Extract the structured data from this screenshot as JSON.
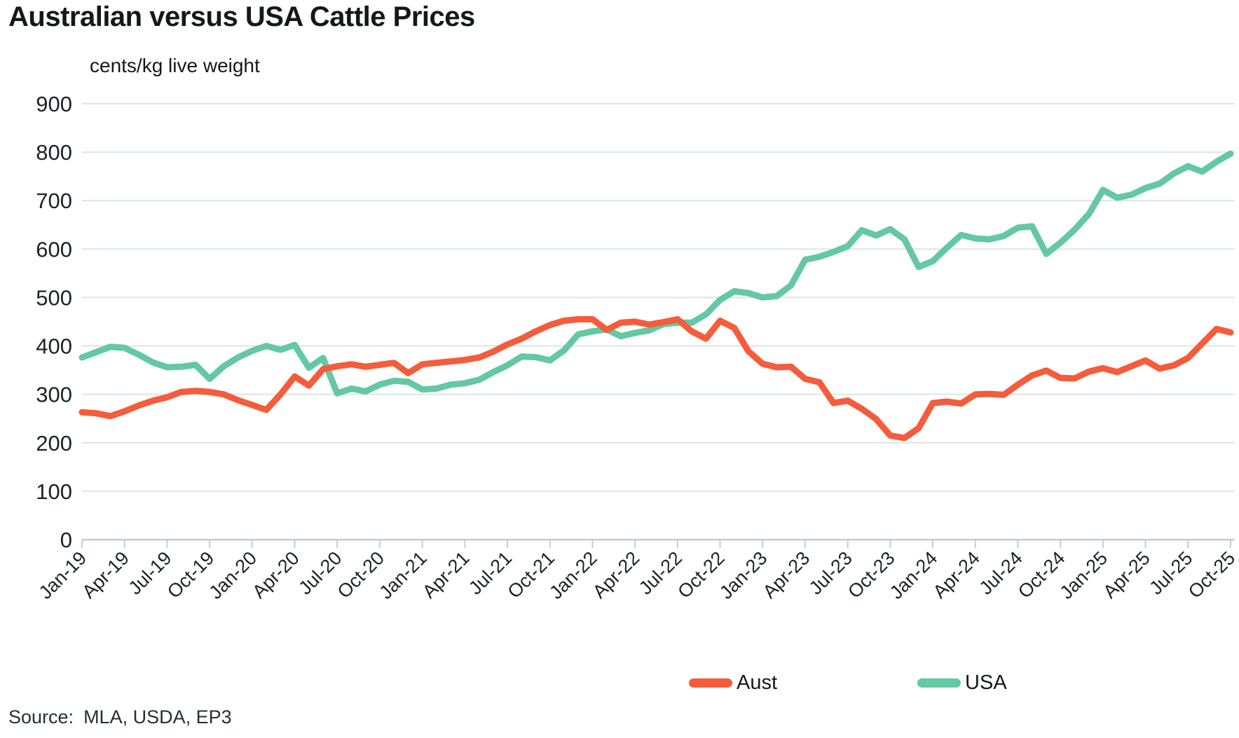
{
  "title": "Australian versus USA Cattle Prices",
  "source": {
    "label": "Source:",
    "text": "MLA, USDA, EP3"
  },
  "colors": {
    "aust_line": "#F45C3C",
    "usa_line": "#63C8A3",
    "grid": "#DDE6E2",
    "axis": "#C2CFCA",
    "text": "#1A2224"
  },
  "chart_data": {
    "type": "line",
    "title": "Australian versus USA Cattle Prices",
    "ylabel": "cents/kg live weight",
    "xlabel": "",
    "ylim": [
      0,
      900
    ],
    "ytick_step": 100,
    "grid": "horizontal",
    "legend_position": "bottom",
    "xtick_every": 3,
    "x": [
      "Jan-19",
      "Feb-19",
      "Mar-19",
      "Apr-19",
      "May-19",
      "Jun-19",
      "Jul-19",
      "Aug-19",
      "Sep-19",
      "Oct-19",
      "Nov-19",
      "Dec-19",
      "Jan-20",
      "Feb-20",
      "Mar-20",
      "Apr-20",
      "May-20",
      "Jun-20",
      "Jul-20",
      "Aug-20",
      "Sep-20",
      "Oct-20",
      "Nov-20",
      "Dec-20",
      "Jan-21",
      "Feb-21",
      "Mar-21",
      "Apr-21",
      "May-21",
      "Jun-21",
      "Jul-21",
      "Aug-21",
      "Sep-21",
      "Oct-21",
      "Nov-21",
      "Dec-21",
      "Jan-22",
      "Feb-22",
      "Mar-22",
      "Apr-22",
      "May-22",
      "Jun-22",
      "Jul-22",
      "Aug-22",
      "Sep-22",
      "Oct-22",
      "Nov-22",
      "Dec-22",
      "Jan-23",
      "Feb-23",
      "Mar-23",
      "Apr-23",
      "May-23",
      "Jun-23",
      "Jul-23",
      "Aug-23",
      "Sep-23",
      "Oct-23",
      "Nov-23",
      "Dec-23",
      "Jan-24",
      "Feb-24",
      "Mar-24",
      "Apr-24",
      "May-24",
      "Jun-24",
      "Jul-24",
      "Aug-24",
      "Sep-24",
      "Oct-24",
      "Nov-24",
      "Dec-24",
      "Jan-25",
      "Feb-25",
      "Mar-25",
      "Apr-25",
      "May-25",
      "Jun-25",
      "Jul-25",
      "Aug-25",
      "Sep-25",
      "Oct-25"
    ],
    "series": [
      {
        "name": "Aust",
        "color": "#F45C3C",
        "values": [
          263,
          261,
          255,
          265,
          277,
          287,
          294,
          305,
          307,
          305,
          300,
          288,
          278,
          268,
          300,
          337,
          318,
          352,
          358,
          362,
          357,
          361,
          365,
          344,
          362,
          365,
          368,
          371,
          376,
          388,
          403,
          415,
          430,
          443,
          452,
          455,
          455,
          433,
          448,
          450,
          444,
          449,
          455,
          430,
          415,
          452,
          437,
          389,
          363,
          356,
          357,
          332,
          325,
          282,
          287,
          270,
          249,
          215,
          210,
          230,
          282,
          285,
          281,
          300,
          301,
          299,
          320,
          339,
          349,
          334,
          333,
          347,
          354,
          346,
          358,
          370,
          353,
          360,
          375,
          405,
          435,
          428
        ]
      },
      {
        "name": "USA",
        "color": "#63C8A3",
        "values": [
          376,
          387,
          398,
          396,
          382,
          366,
          356,
          357,
          361,
          332,
          358,
          376,
          390,
          400,
          392,
          402,
          355,
          375,
          302,
          312,
          306,
          320,
          328,
          326,
          310,
          312,
          320,
          323,
          330,
          346,
          360,
          378,
          377,
          370,
          391,
          424,
          430,
          434,
          420,
          427,
          432,
          445,
          448,
          448,
          465,
          495,
          513,
          509,
          500,
          503,
          525,
          578,
          584,
          594,
          606,
          639,
          628,
          641,
          620,
          563,
          575,
          603,
          629,
          622,
          620,
          627,
          644,
          647,
          590,
          613,
          640,
          672,
          722,
          706,
          712,
          726,
          735,
          756,
          771,
          760,
          780,
          797
        ]
      }
    ]
  }
}
